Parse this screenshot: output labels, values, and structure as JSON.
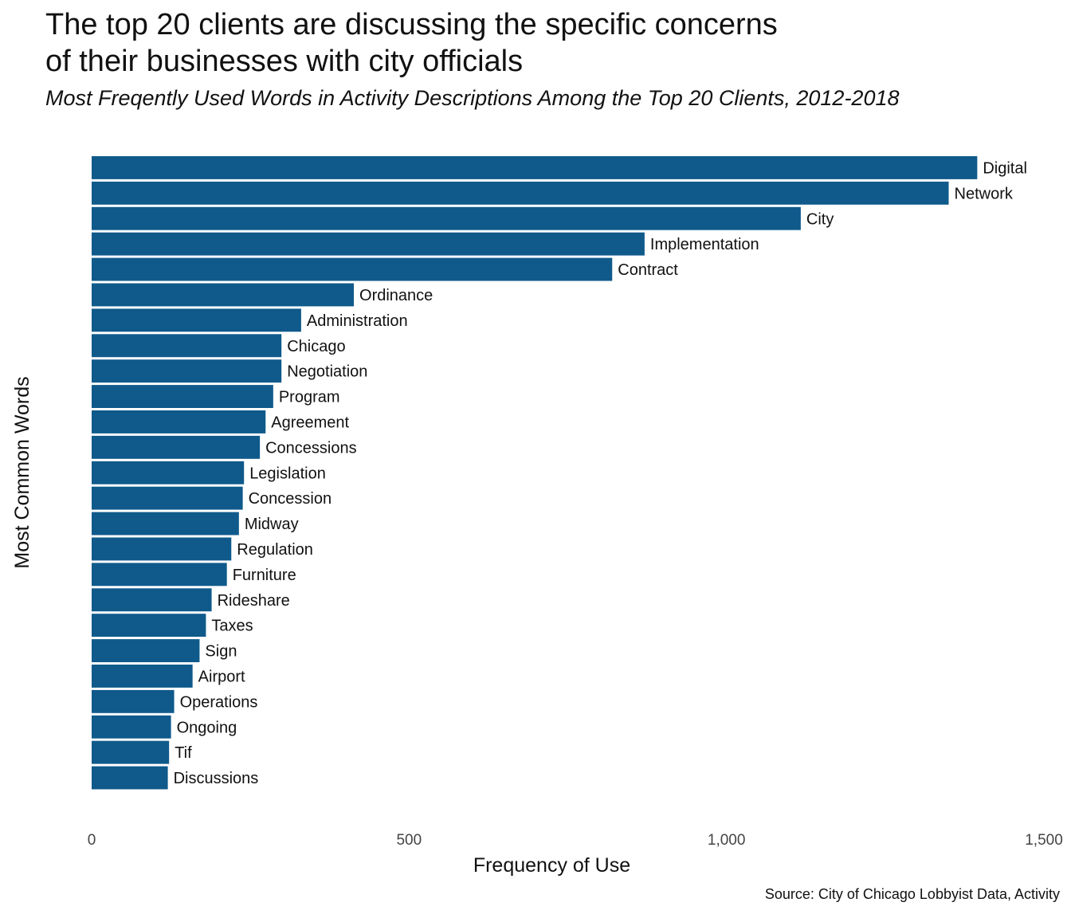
{
  "chart_data": {
    "type": "bar",
    "orientation": "horizontal",
    "title": "The top 20 clients are discussing the specific concerns\nof their businesses with city officials",
    "subtitle": "Most Freqently Used Words in Activity Descriptions Among the Top 20 Clients, 2012-2018",
    "xlabel": "Frequency of Use",
    "ylabel": "Most Common Words",
    "caption": "Source: City of Chicago Lobbyist Data, Activity",
    "xlim": [
      0,
      1500
    ],
    "xticks": [
      0,
      500,
      1000,
      1500
    ],
    "xtick_labels": [
      "0",
      "500",
      "1,000",
      "1,500"
    ],
    "grid": false,
    "bar_color": "#0f5a8b",
    "categories": [
      "Digital",
      "Network",
      "City",
      "Implementation",
      "Contract",
      "Ordinance",
      "Administration",
      "Chicago",
      "Negotiation",
      "Program",
      "Agreement",
      "Concessions",
      "Legislation",
      "Concession",
      "Midway",
      "Regulation",
      "Furniture",
      "Rideshare",
      "Taxes",
      "Sign",
      "Airport",
      "Operations",
      "Ongoing",
      "Tif",
      "Discussions"
    ],
    "values": [
      1395,
      1350,
      1117,
      871,
      820,
      413,
      330,
      299,
      299,
      286,
      274,
      265,
      240,
      238,
      232,
      220,
      213,
      189,
      180,
      170,
      159,
      130,
      125,
      122,
      120
    ]
  }
}
